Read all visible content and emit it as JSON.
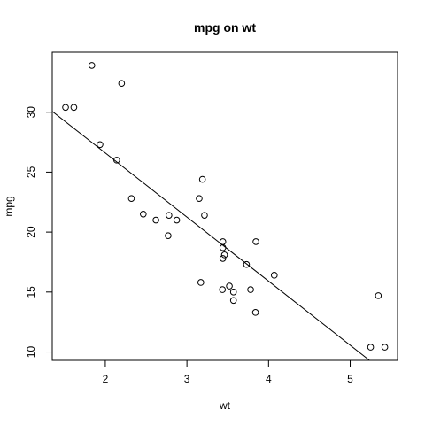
{
  "chart_data": {
    "type": "scatter",
    "title": "mpg on wt",
    "xlabel": "wt",
    "ylabel": "mpg",
    "xlim": [
      1.35,
      5.58
    ],
    "ylim": [
      9.3,
      35.0
    ],
    "xticks": [
      2,
      3,
      4,
      5
    ],
    "yticks": [
      10,
      15,
      20,
      25,
      30
    ],
    "grid": false,
    "points": [
      {
        "x": 2.62,
        "y": 21.0
      },
      {
        "x": 2.875,
        "y": 21.0
      },
      {
        "x": 2.32,
        "y": 22.8
      },
      {
        "x": 3.215,
        "y": 21.4
      },
      {
        "x": 3.44,
        "y": 18.7
      },
      {
        "x": 3.46,
        "y": 18.1
      },
      {
        "x": 3.57,
        "y": 14.3
      },
      {
        "x": 3.19,
        "y": 24.4
      },
      {
        "x": 3.15,
        "y": 22.8
      },
      {
        "x": 3.44,
        "y": 19.2
      },
      {
        "x": 3.44,
        "y": 17.8
      },
      {
        "x": 4.07,
        "y": 16.4
      },
      {
        "x": 3.73,
        "y": 17.3
      },
      {
        "x": 3.78,
        "y": 15.2
      },
      {
        "x": 5.25,
        "y": 10.4
      },
      {
        "x": 5.424,
        "y": 10.4
      },
      {
        "x": 5.345,
        "y": 14.7
      },
      {
        "x": 2.2,
        "y": 32.4
      },
      {
        "x": 1.615,
        "y": 30.4
      },
      {
        "x": 1.835,
        "y": 33.9
      },
      {
        "x": 2.465,
        "y": 21.5
      },
      {
        "x": 3.52,
        "y": 15.5
      },
      {
        "x": 3.435,
        "y": 15.2
      },
      {
        "x": 3.84,
        "y": 13.3
      },
      {
        "x": 3.845,
        "y": 19.2
      },
      {
        "x": 1.935,
        "y": 27.3
      },
      {
        "x": 2.14,
        "y": 26.0
      },
      {
        "x": 1.513,
        "y": 30.4
      },
      {
        "x": 3.17,
        "y": 15.8
      },
      {
        "x": 2.77,
        "y": 19.7
      },
      {
        "x": 3.57,
        "y": 15.0
      },
      {
        "x": 2.78,
        "y": 21.4
      }
    ],
    "fit_line": {
      "intercept": 37.2851,
      "slope": -5.3445
    }
  }
}
